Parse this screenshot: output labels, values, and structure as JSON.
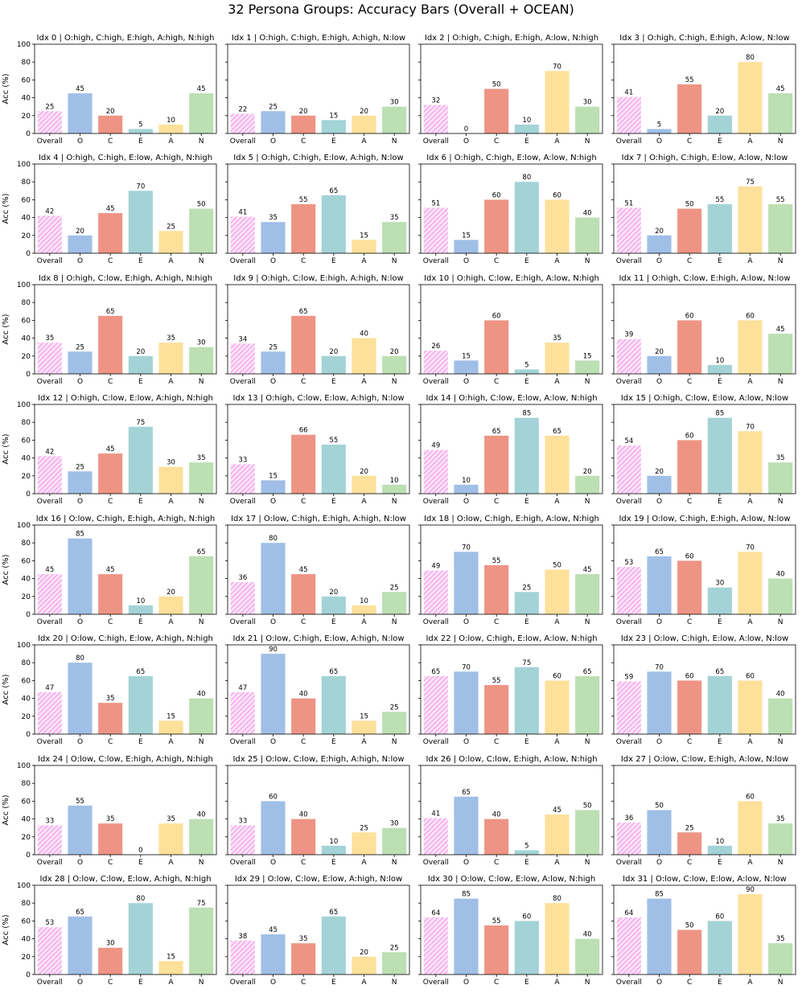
{
  "chart_data": {
    "type": "bar",
    "title": "32 Persona Groups: Accuracy Bars (Overall + OCEAN)",
    "ylabel": "Acc (%)",
    "ylim": [
      0,
      100
    ],
    "yticks": [
      0,
      20,
      40,
      60,
      80,
      100
    ],
    "categories": [
      "Overall",
      "O",
      "C",
      "E",
      "A",
      "N"
    ],
    "colors": {
      "Overall": "#f39bea",
      "O": "#a0bfe7",
      "C": "#ee9484",
      "E": "#a3d3d6",
      "A": "#fde09a",
      "N": "#bcdfb3"
    },
    "overall_style": "hatched",
    "panels": [
      {
        "title": "Idx 0 | O:high, C:high, E:high, A:high, N:high",
        "values": [
          25,
          45,
          20,
          5,
          10,
          45
        ]
      },
      {
        "title": "Idx 1 | O:high, C:high, E:high, A:high, N:low",
        "values": [
          22,
          25,
          20,
          15,
          20,
          30
        ]
      },
      {
        "title": "Idx 2 | O:high, C:high, E:high, A:low, N:high",
        "values": [
          32,
          0,
          50,
          10,
          70,
          30
        ]
      },
      {
        "title": "Idx 3 | O:high, C:high, E:high, A:low, N:low",
        "values": [
          41,
          5,
          55,
          20,
          80,
          45
        ]
      },
      {
        "title": "Idx 4 | O:high, C:high, E:low, A:high, N:high",
        "values": [
          42,
          20,
          45,
          70,
          25,
          50
        ]
      },
      {
        "title": "Idx 5 | O:high, C:high, E:low, A:high, N:low",
        "values": [
          41,
          35,
          55,
          65,
          15,
          35
        ]
      },
      {
        "title": "Idx 6 | O:high, C:high, E:low, A:low, N:high",
        "values": [
          51,
          15,
          60,
          80,
          60,
          40
        ]
      },
      {
        "title": "Idx 7 | O:high, C:high, E:low, A:low, N:low",
        "values": [
          51,
          20,
          50,
          55,
          75,
          55
        ]
      },
      {
        "title": "Idx 8 | O:high, C:low, E:high, A:high, N:high",
        "values": [
          35,
          25,
          65,
          20,
          35,
          30
        ]
      },
      {
        "title": "Idx 9 | O:high, C:low, E:high, A:high, N:low",
        "values": [
          34,
          25,
          65,
          20,
          40,
          20
        ]
      },
      {
        "title": "Idx 10 | O:high, C:low, E:high, A:low, N:high",
        "values": [
          26,
          15,
          60,
          5,
          35,
          15
        ]
      },
      {
        "title": "Idx 11 | O:high, C:low, E:high, A:low, N:low",
        "values": [
          39,
          20,
          60,
          10,
          60,
          45
        ]
      },
      {
        "title": "Idx 12 | O:high, C:low, E:low, A:high, N:high",
        "values": [
          42,
          25,
          45,
          75,
          30,
          35
        ]
      },
      {
        "title": "Idx 13 | O:high, C:low, E:low, A:high, N:low",
        "values": [
          33,
          15,
          66,
          55,
          20,
          10
        ]
      },
      {
        "title": "Idx 14 | O:high, C:low, E:low, A:low, N:high",
        "values": [
          49,
          10,
          65,
          85,
          65,
          20
        ]
      },
      {
        "title": "Idx 15 | O:high, C:low, E:low, A:low, N:low",
        "values": [
          54,
          20,
          60,
          85,
          70,
          35
        ]
      },
      {
        "title": "Idx 16 | O:low, C:high, E:high, A:high, N:high",
        "values": [
          45,
          85,
          45,
          10,
          20,
          65
        ]
      },
      {
        "title": "Idx 17 | O:low, C:high, E:high, A:high, N:low",
        "values": [
          36,
          80,
          45,
          20,
          10,
          25
        ]
      },
      {
        "title": "Idx 18 | O:low, C:high, E:high, A:low, N:high",
        "values": [
          49,
          70,
          55,
          25,
          50,
          45
        ]
      },
      {
        "title": "Idx 19 | O:low, C:high, E:high, A:low, N:low",
        "values": [
          53,
          65,
          60,
          30,
          70,
          40
        ]
      },
      {
        "title": "Idx 20 | O:low, C:high, E:low, A:high, N:high",
        "values": [
          47,
          80,
          35,
          65,
          15,
          40
        ]
      },
      {
        "title": "Idx 21 | O:low, C:high, E:low, A:high, N:low",
        "values": [
          47,
          90,
          40,
          65,
          15,
          25
        ]
      },
      {
        "title": "Idx 22 | O:low, C:high, E:low, A:low, N:high",
        "values": [
          65,
          70,
          55,
          75,
          60,
          65
        ]
      },
      {
        "title": "Idx 23 | O:low, C:high, E:low, A:low, N:low",
        "values": [
          59,
          70,
          60,
          65,
          60,
          40
        ]
      },
      {
        "title": "Idx 24 | O:low, C:low, E:high, A:high, N:high",
        "values": [
          33,
          55,
          35,
          0,
          35,
          40
        ]
      },
      {
        "title": "Idx 25 | O:low, C:low, E:high, A:high, N:low",
        "values": [
          33,
          60,
          40,
          10,
          25,
          30
        ]
      },
      {
        "title": "Idx 26 | O:low, C:low, E:high, A:low, N:high",
        "values": [
          41,
          65,
          40,
          5,
          45,
          50
        ]
      },
      {
        "title": "Idx 27 | O:low, C:low, E:high, A:low, N:low",
        "values": [
          36,
          50,
          25,
          10,
          60,
          35
        ]
      },
      {
        "title": "Idx 28 | O:low, C:low, E:low, A:high, N:high",
        "values": [
          53,
          65,
          30,
          80,
          15,
          75
        ]
      },
      {
        "title": "Idx 29 | O:low, C:low, E:low, A:high, N:low",
        "values": [
          38,
          45,
          35,
          65,
          20,
          25
        ]
      },
      {
        "title": "Idx 30 | O:low, C:low, E:low, A:low, N:high",
        "values": [
          64,
          85,
          55,
          60,
          80,
          40
        ]
      },
      {
        "title": "Idx 31 | O:low, C:low, E:low, A:low, N:low",
        "values": [
          64,
          85,
          50,
          60,
          90,
          35
        ]
      }
    ]
  }
}
